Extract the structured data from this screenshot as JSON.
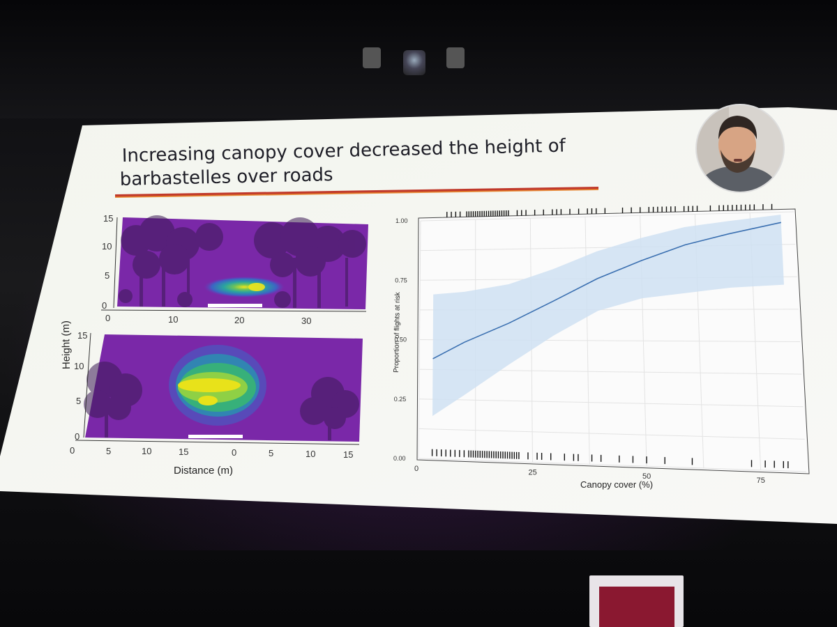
{
  "slide": {
    "title_line1": "Increasing canopy cover decreased the height of",
    "title_line2": "barbastelles over roads",
    "accent_color": "#c0392b"
  },
  "heatmaps": {
    "ylabel": "Height (m)",
    "xlabel": "Distance (m)",
    "top": {
      "y_ticks": [
        "15",
        "10",
        "5",
        "0"
      ],
      "x_ticks": [
        "0",
        "10",
        "20",
        "30"
      ]
    },
    "bottom": {
      "y_ticks": [
        "15",
        "10",
        "5",
        "0"
      ],
      "x_ticks": [
        "0",
        "5",
        "10",
        "15",
        "0",
        "5",
        "10",
        "15"
      ]
    },
    "colormap": [
      "#7a1fa0",
      "#3d63c4",
      "#2aa3a0",
      "#58c06a",
      "#e8e21a"
    ]
  },
  "chart_data": {
    "type": "line",
    "xlabel": "Canopy cover (%)",
    "ylabel": "Proportion of flights at risk",
    "xlim": [
      0,
      85
    ],
    "ylim": [
      0,
      1
    ],
    "x_ticks": [
      0,
      25,
      50,
      75
    ],
    "y_ticks": [
      0.0,
      0.25,
      0.5,
      0.75,
      1.0
    ],
    "y_tick_labels": [
      "0.00",
      "0.25",
      "0.50",
      "0.75",
      "1.00"
    ],
    "grid": true,
    "series": [
      {
        "x": [
          3,
          10,
          20,
          30,
          40,
          50,
          60,
          70,
          82
        ],
        "y": [
          0.42,
          0.49,
          0.57,
          0.66,
          0.75,
          0.82,
          0.88,
          0.92,
          0.96
        ],
        "lower": [
          0.18,
          0.27,
          0.4,
          0.52,
          0.62,
          0.67,
          0.69,
          0.71,
          0.72
        ],
        "upper": [
          0.69,
          0.7,
          0.73,
          0.79,
          0.86,
          0.91,
          0.95,
          0.97,
          0.99
        ],
        "color": "#3a6fb0",
        "band_color": "#cfe0f2"
      }
    ],
    "rug_top": [
      6,
      7,
      8,
      9,
      10.5,
      11,
      11.5,
      12,
      12.5,
      13,
      13.5,
      14,
      14.5,
      15,
      15.5,
      16,
      16.5,
      17,
      17.5,
      18,
      18.5,
      19,
      19.5,
      20,
      22,
      23,
      24,
      26,
      28,
      30,
      31,
      32,
      34,
      36,
      38,
      39,
      40,
      42,
      46,
      48,
      50,
      52,
      53,
      54,
      55,
      56,
      57,
      58,
      60,
      61,
      62,
      63,
      66,
      68,
      69,
      70,
      71,
      72,
      73,
      74,
      75,
      76,
      78,
      80
    ],
    "rug_bottom": [
      3,
      4,
      5,
      6,
      7,
      8,
      9,
      10,
      11,
      11.5,
      12,
      12.5,
      13,
      13.5,
      14,
      14.5,
      15,
      15.5,
      16,
      16.5,
      17,
      17.5,
      18,
      18.5,
      19,
      19.5,
      20,
      20.5,
      21,
      21.5,
      22,
      24,
      26,
      27,
      29,
      32,
      34,
      35,
      38,
      40,
      44,
      47,
      50,
      54,
      60,
      73,
      76,
      78,
      80,
      81
    ]
  }
}
